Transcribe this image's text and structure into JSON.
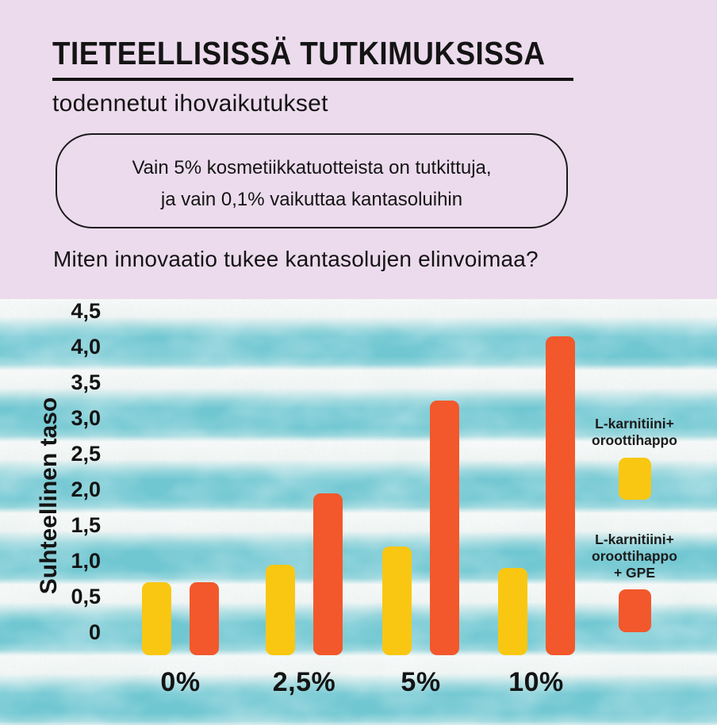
{
  "header": {
    "title": "TIETEELLISISSÄ TUTKIMUKSISSA",
    "subtitle": "todennetut ihovaikutukset",
    "callout_line1": "Vain 5% kosmetiikkatuotteista on tutkittuja,",
    "callout_line2": "ja vain 0,1% vaikuttaa kantasoluihin",
    "question": "Miten innovaatio tukee kantasolujen elinvoimaa?"
  },
  "chart_data": {
    "type": "bar",
    "title": "",
    "xlabel": "",
    "ylabel": "Suhteellinen taso",
    "categories": [
      "0%",
      "2,5%",
      "5%",
      "10%"
    ],
    "series": [
      {
        "name": "L-karnitiini+ oroottihappo",
        "color": "#f9c712",
        "values": [
          0.7,
          0.95,
          1.2,
          0.9
        ]
      },
      {
        "name": "L-karnitiini+ oroottihappo + GPE",
        "color": "#f2582b",
        "values": [
          0.7,
          1.95,
          3.25,
          4.15
        ]
      }
    ],
    "y_ticks": [
      "4,5",
      "4,0",
      "3,5",
      "3,0",
      "2,5",
      "2,0",
      "1,5",
      "1,0",
      "0,5",
      "0"
    ],
    "ylim": [
      0,
      4.5
    ],
    "grid": false,
    "legend_position": "right",
    "background_style": "teal watercolor stripes"
  },
  "legend": {
    "items": [
      {
        "label_lines": [
          "L-karnitiini+",
          "oroottihappo"
        ],
        "color": "#f9c712"
      },
      {
        "label_lines": [
          "L-karnitiini+",
          "oroottihappo",
          "+ GPE"
        ],
        "color": "#f2582b"
      }
    ]
  },
  "colors": {
    "header_background": "#ecdbed",
    "stripe_teal": "#6fc7d2",
    "stripe_light": "#f5f8f7",
    "bar_yellow": "#f9c712",
    "bar_orange": "#f2582b",
    "text": "#141414"
  }
}
